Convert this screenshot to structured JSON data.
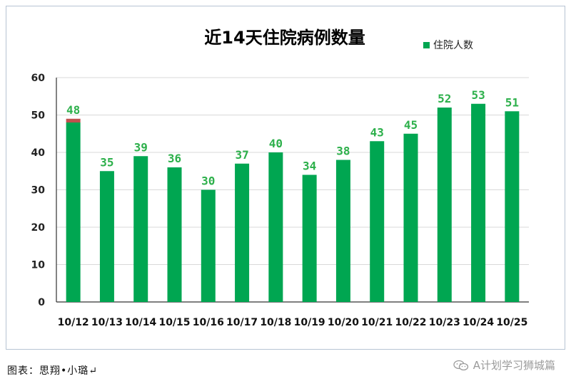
{
  "chart_data": {
    "type": "bar",
    "title": "近14天住院病例数量",
    "legend": {
      "label": "住院人数",
      "position": "top-right"
    },
    "categories": [
      "10/12",
      "10/13",
      "10/14",
      "10/15",
      "10/16",
      "10/17",
      "10/18",
      "10/19",
      "10/20",
      "10/21",
      "10/22",
      "10/23",
      "10/24",
      "10/25"
    ],
    "series": [
      {
        "name": "住院人数",
        "values": [
          48,
          35,
          39,
          36,
          30,
          37,
          40,
          34,
          38,
          43,
          45,
          52,
          53,
          51
        ],
        "extra": [
          1,
          0,
          0,
          0,
          0,
          0,
          0,
          0,
          0,
          0,
          0,
          0,
          0,
          0
        ]
      }
    ],
    "data_labels": [
      "48",
      "35",
      "39",
      "36",
      "30",
      "37",
      "40",
      "34",
      "38",
      "43",
      "45",
      "52",
      "53",
      "51"
    ],
    "y_ticks": [
      "0",
      "10",
      "20",
      "30",
      "40",
      "50",
      "60"
    ],
    "ylim": [
      0,
      60
    ],
    "grid": true,
    "colors": {
      "bar": "#00a651",
      "extra": "#c0504d",
      "label": "#2db04b",
      "grid": "#d9d9d9",
      "axis": "#333333"
    }
  },
  "footer": {
    "caption": "图表：思翔•小璐↵"
  },
  "watermark": {
    "icon": "wechat-icon",
    "text": "A计划学习狮城篇"
  }
}
